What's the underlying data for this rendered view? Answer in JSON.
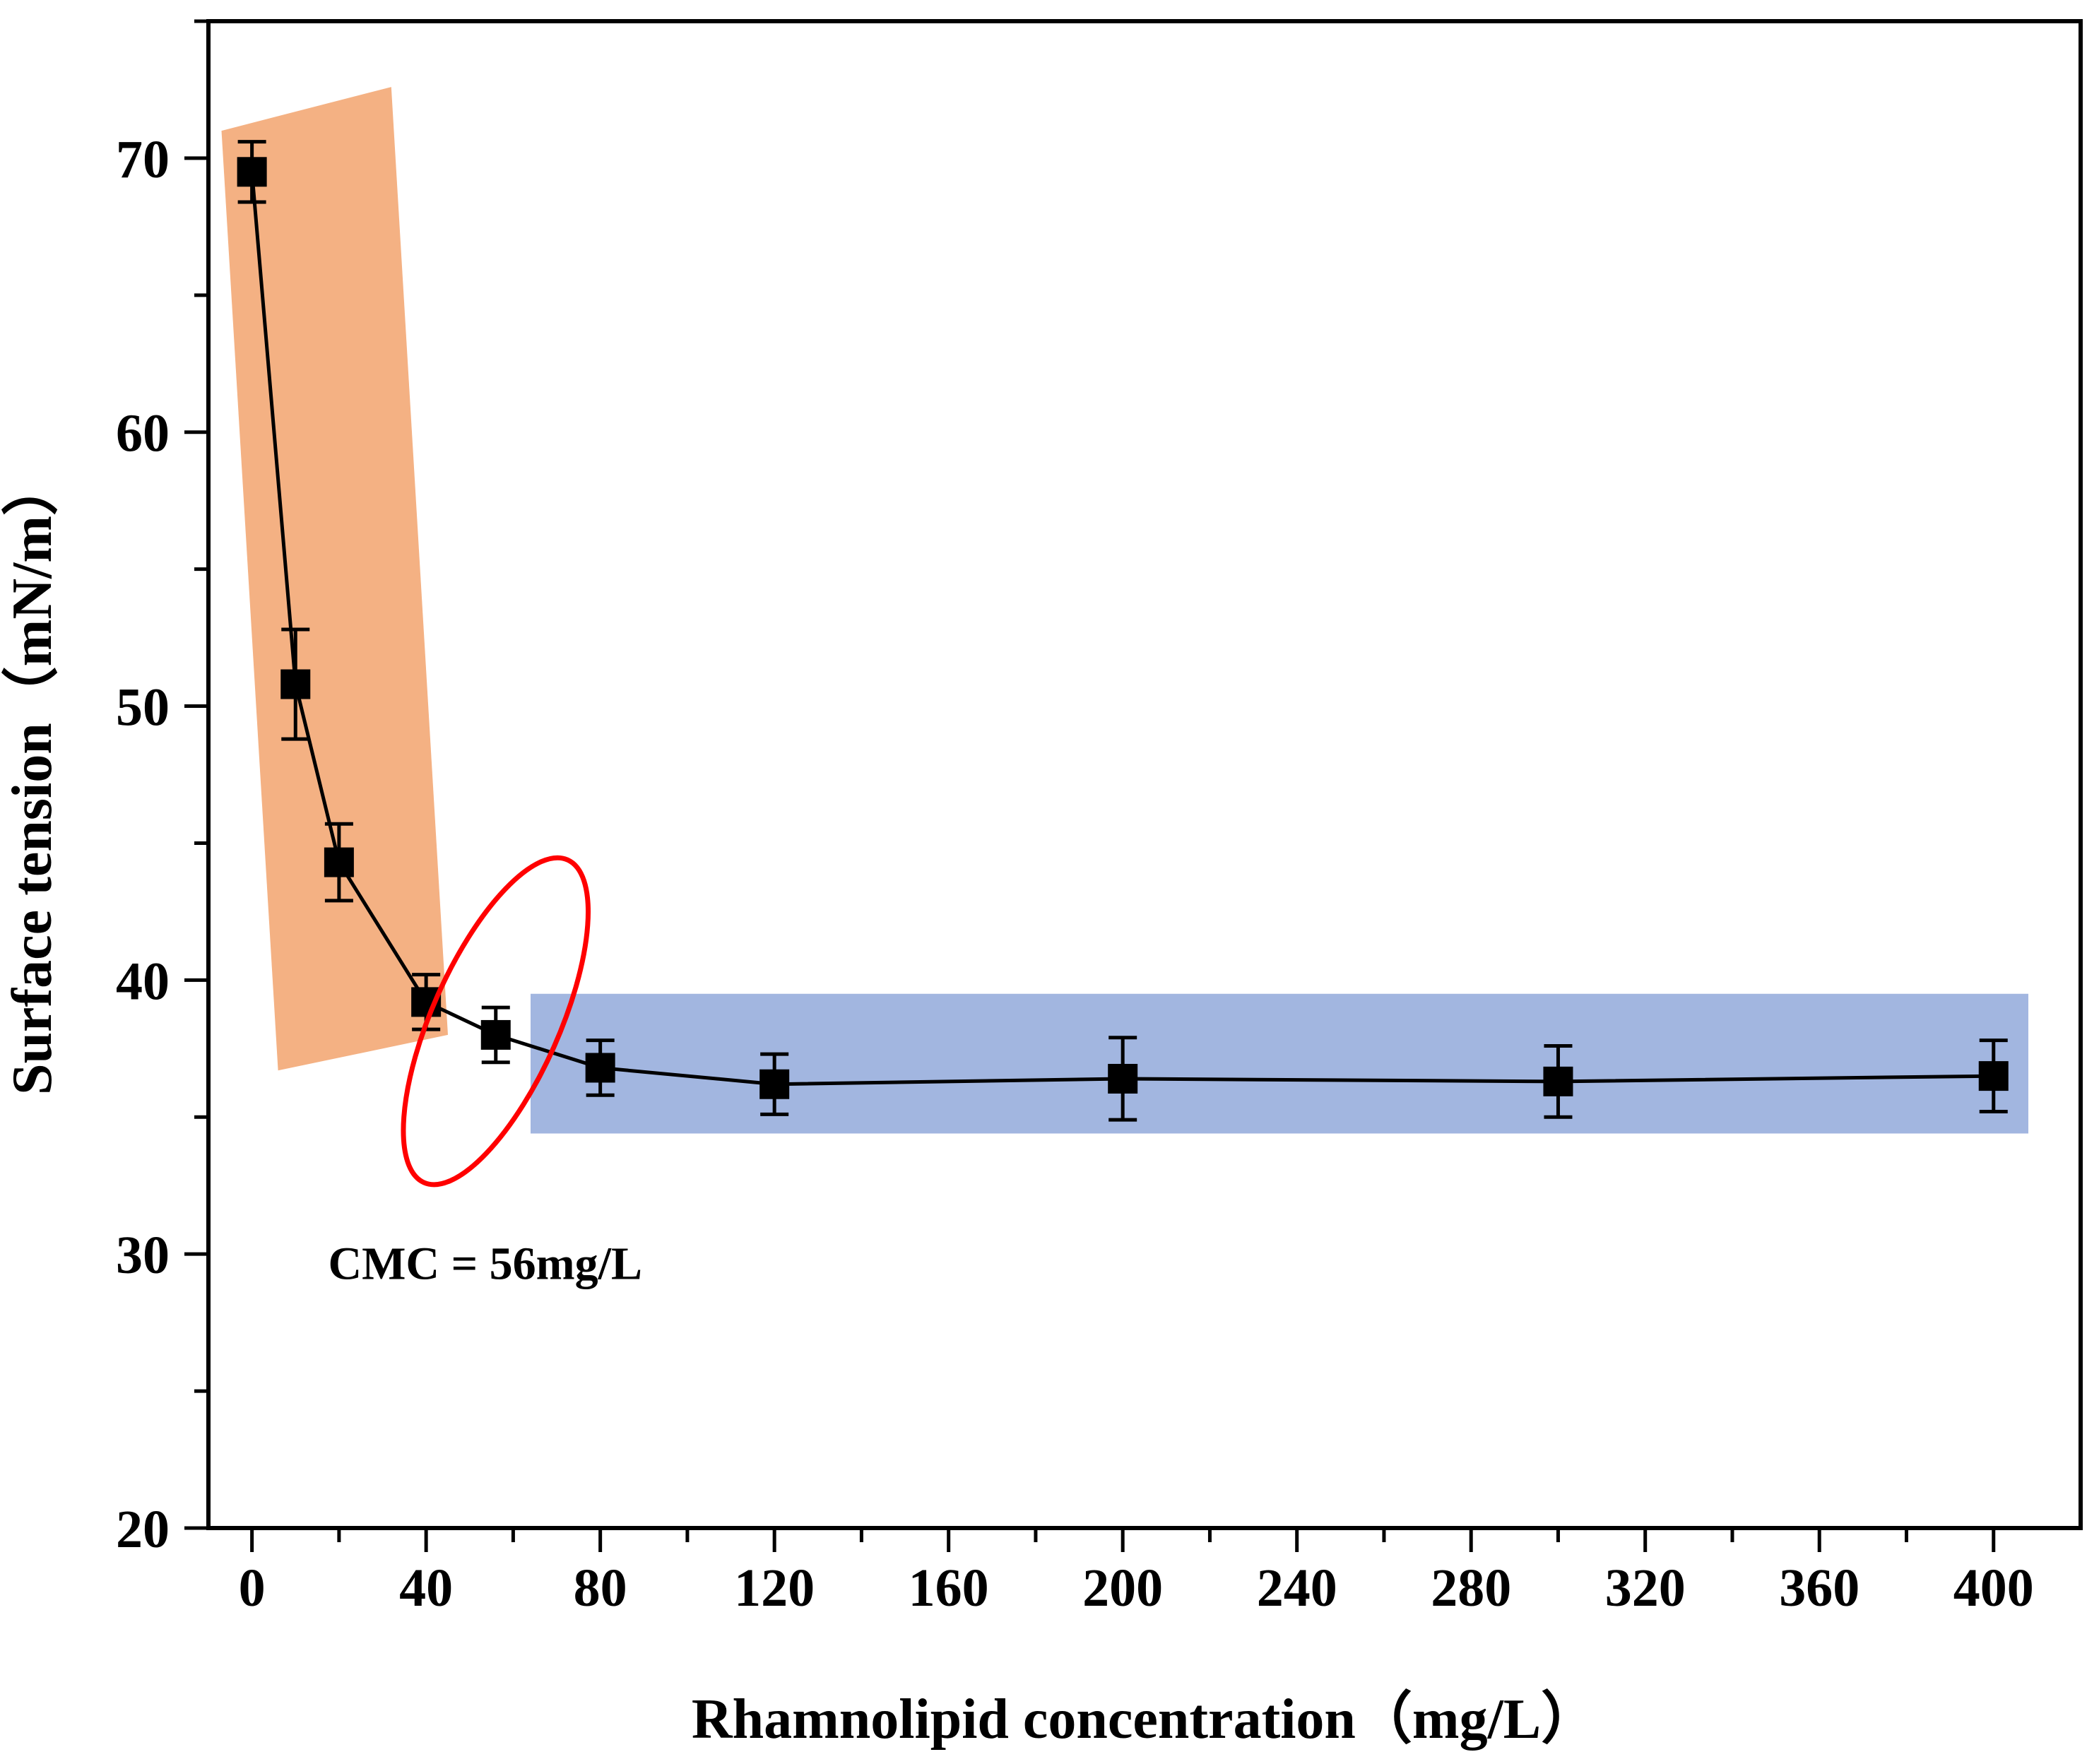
{
  "chart_data": {
    "type": "line",
    "title": "",
    "xlabel": "Rhamnolipid concentration（mg/L）",
    "ylabel": "Surface tension（mN/m）",
    "xlim": [
      -10,
      420
    ],
    "ylim": [
      20,
      75
    ],
    "xticks": [
      0,
      40,
      80,
      120,
      160,
      200,
      240,
      280,
      320,
      360,
      400
    ],
    "yticks": [
      20,
      30,
      40,
      50,
      60,
      70
    ],
    "grid": false,
    "legend": "none",
    "marker": "square",
    "series": [
      {
        "name": "Surface tension",
        "x": [
          0,
          10,
          20,
          40,
          56,
          80,
          120,
          200,
          300,
          400
        ],
        "y": [
          69.5,
          50.8,
          44.3,
          39.2,
          38.0,
          36.8,
          36.2,
          36.4,
          36.3,
          36.5
        ],
        "yerr": [
          1.1,
          2.0,
          1.4,
          1.0,
          1.0,
          1.0,
          1.1,
          1.5,
          1.3,
          1.3
        ]
      }
    ],
    "regions": [
      {
        "name": "steep-decline-region",
        "color": "#f4b183",
        "polygon": [
          [
            -7,
            71
          ],
          [
            32,
            72.6
          ],
          [
            45,
            38
          ],
          [
            6,
            36.7
          ]
        ]
      },
      {
        "name": "plateau-region",
        "color": "#a2b6e0",
        "polygon": [
          [
            64,
            39.5
          ],
          [
            408,
            39.5
          ],
          [
            408,
            34.4
          ],
          [
            64,
            34.4
          ]
        ]
      }
    ],
    "highlight": {
      "name": "cmc-ellipse",
      "center": [
        56,
        38.5
      ],
      "color": "#ff0000"
    },
    "annotations": [
      {
        "text": "CMC = 56mg/L",
        "x": 56,
        "y": 29.6
      }
    ]
  }
}
